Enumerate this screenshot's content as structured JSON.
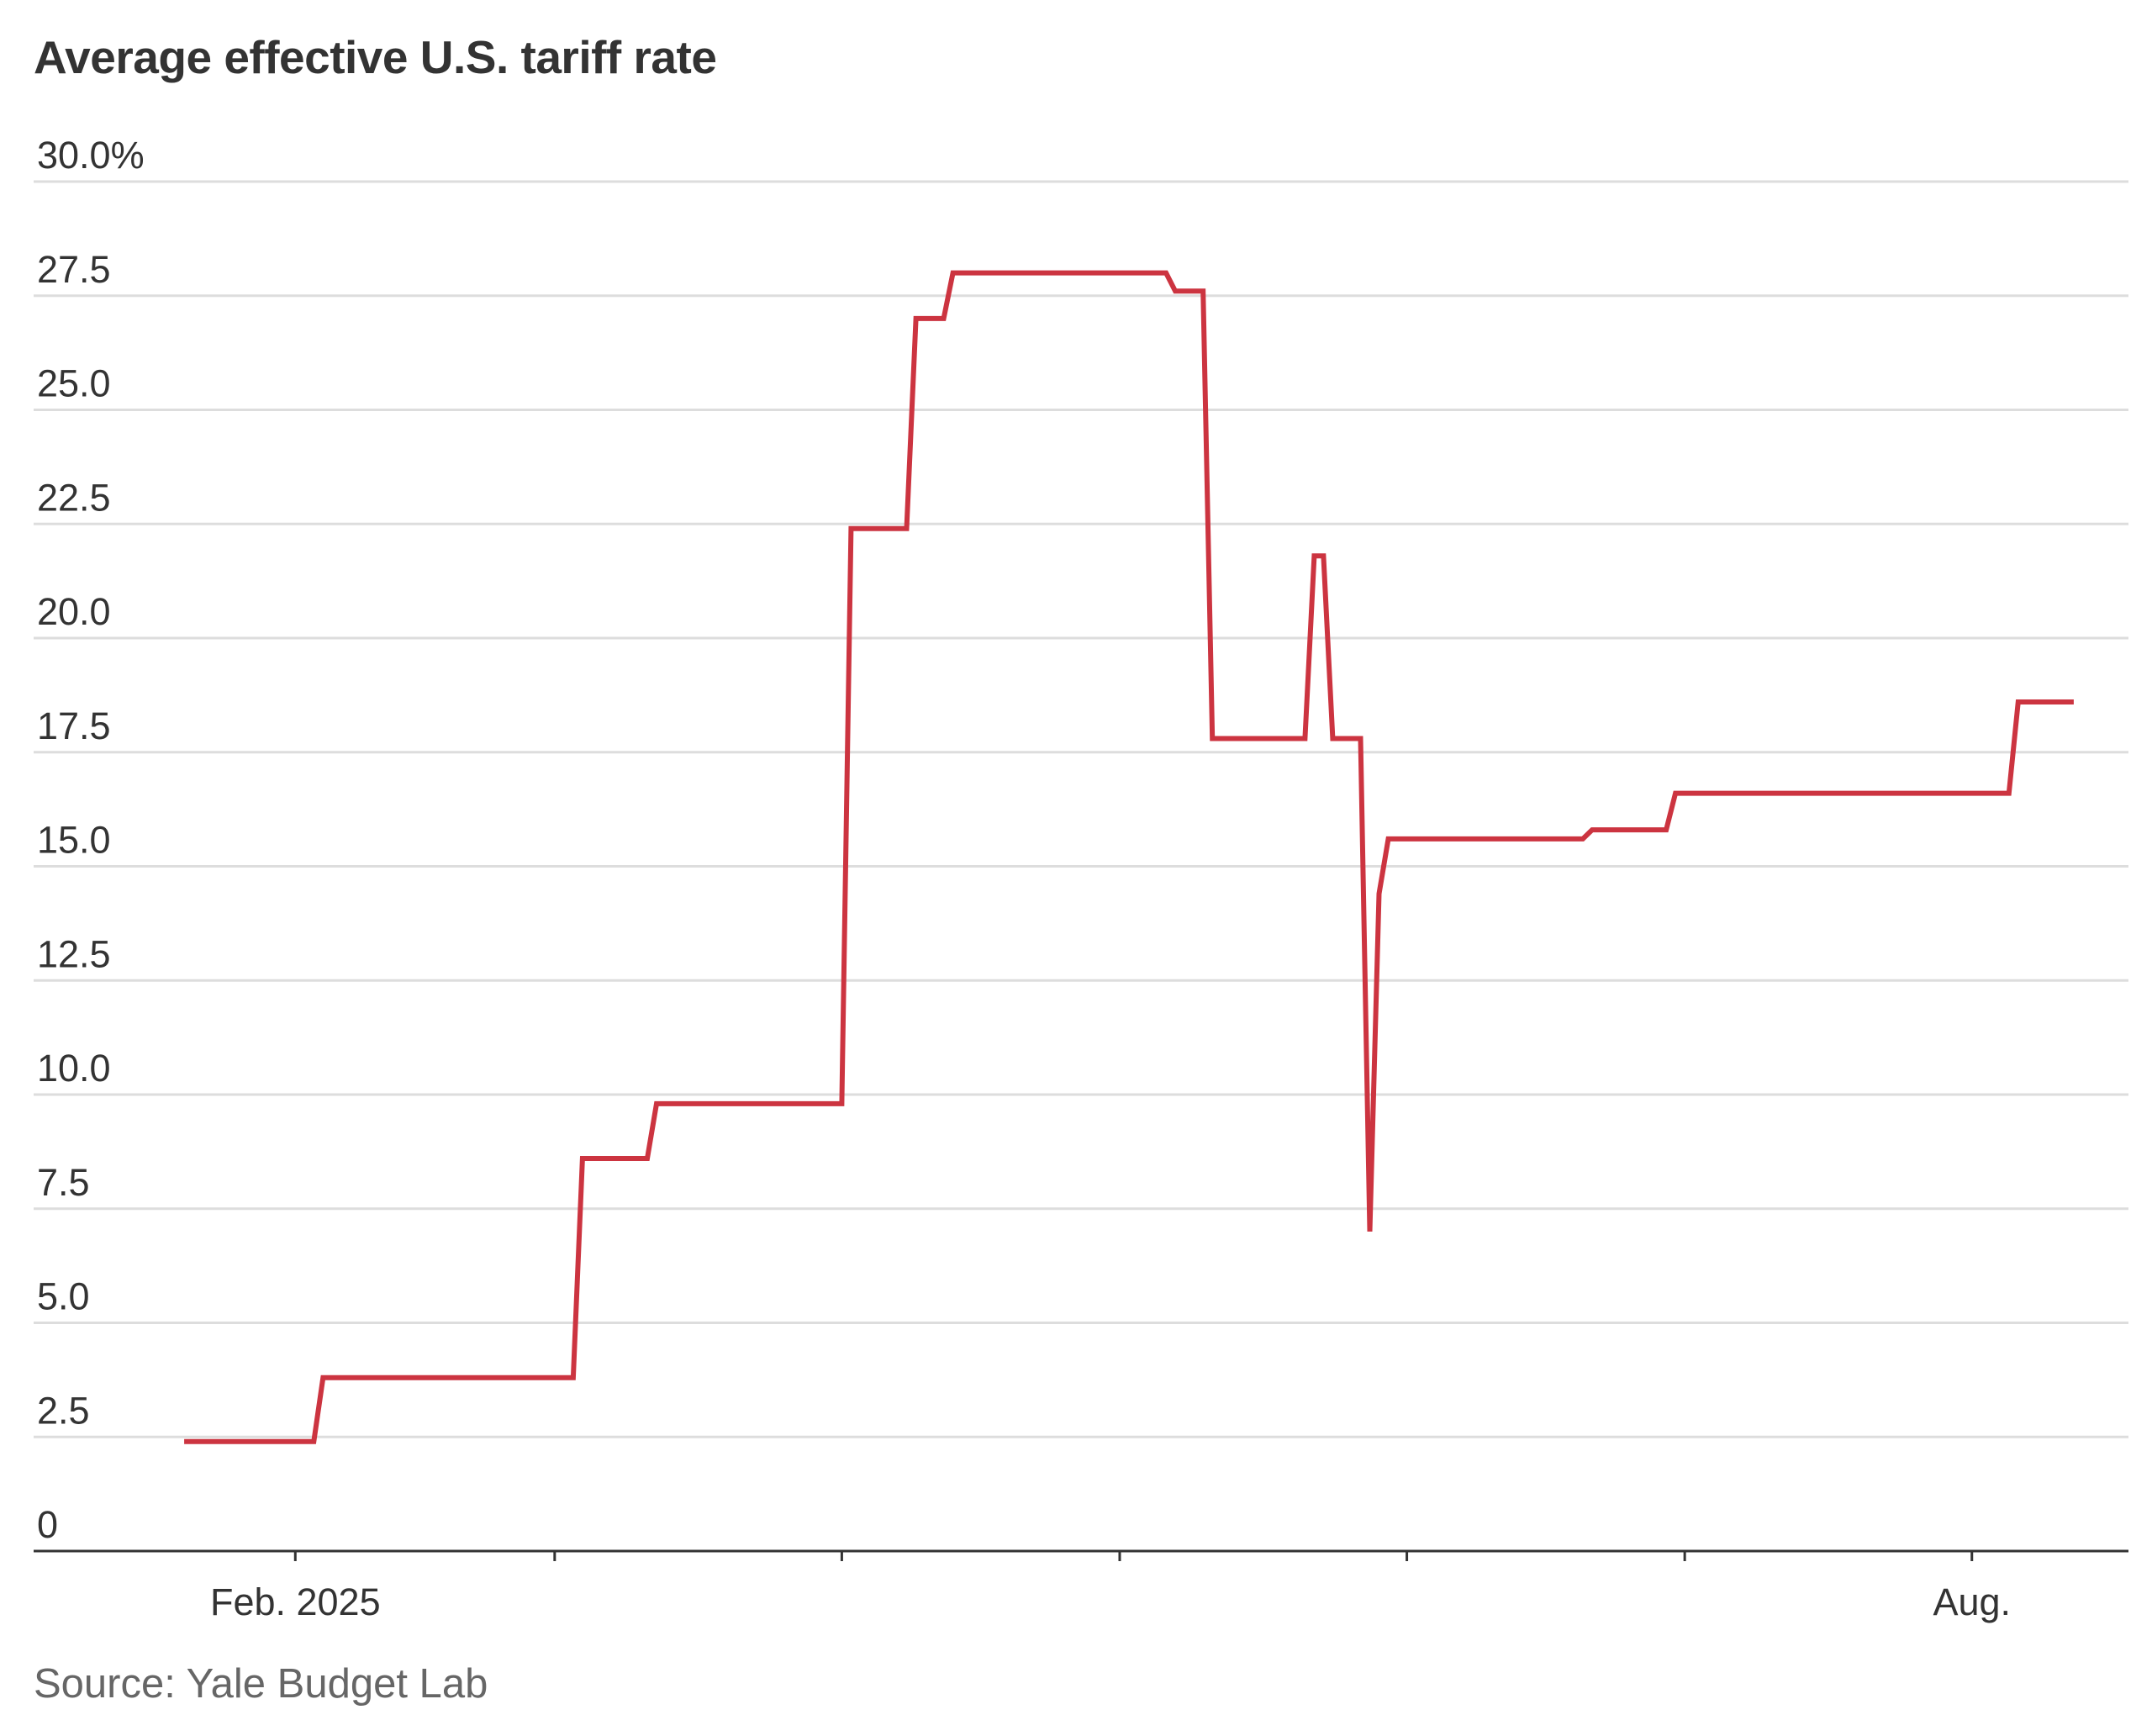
{
  "chart_data": {
    "type": "line",
    "title": "Average effective U.S. tariff rate",
    "source": "Source: Yale Budget Lab",
    "xlabel": "",
    "ylabel": "",
    "ylim": [
      0,
      30
    ],
    "grid": true,
    "y_ticks": [
      {
        "value": 0,
        "label": "0"
      },
      {
        "value": 2.5,
        "label": "2.5"
      },
      {
        "value": 5,
        "label": "5.0"
      },
      {
        "value": 7.5,
        "label": "7.5"
      },
      {
        "value": 10,
        "label": "10.0"
      },
      {
        "value": 12.5,
        "label": "12.5"
      },
      {
        "value": 15,
        "label": "15.0"
      },
      {
        "value": 17.5,
        "label": "17.5"
      },
      {
        "value": 20,
        "label": "20.0"
      },
      {
        "value": 22.5,
        "label": "22.5"
      },
      {
        "value": 25,
        "label": "25.0"
      },
      {
        "value": 27.5,
        "label": "27.5"
      },
      {
        "value": 30,
        "label": "30.0%"
      }
    ],
    "x_range": [
      "2025-01-17",
      "2025-08-15"
    ],
    "x_ticks": [
      {
        "date": "2025-02-01",
        "label": "Feb. 2025"
      },
      {
        "date": "2025-03-01",
        "label": ""
      },
      {
        "date": "2025-04-01",
        "label": ""
      },
      {
        "date": "2025-05-01",
        "label": ""
      },
      {
        "date": "2025-06-01",
        "label": ""
      },
      {
        "date": "2025-07-01",
        "label": ""
      },
      {
        "date": "2025-08-01",
        "label": "Aug."
      }
    ],
    "series": [
      {
        "color": "#cc3440",
        "points": [
          {
            "x": "2025-01-20",
            "y": 2.4
          },
          {
            "x": "2025-02-03",
            "y": 2.4
          },
          {
            "x": "2025-02-04",
            "y": 3.8
          },
          {
            "x": "2025-03-03",
            "y": 3.8
          },
          {
            "x": "2025-03-04",
            "y": 8.6
          },
          {
            "x": "2025-03-11",
            "y": 8.6
          },
          {
            "x": "2025-03-12",
            "y": 9.8
          },
          {
            "x": "2025-04-01",
            "y": 9.8
          },
          {
            "x": "2025-04-02",
            "y": 22.4
          },
          {
            "x": "2025-04-08",
            "y": 22.4
          },
          {
            "x": "2025-04-09",
            "y": 27
          },
          {
            "x": "2025-04-12",
            "y": 27
          },
          {
            "x": "2025-04-13",
            "y": 28
          },
          {
            "x": "2025-05-06",
            "y": 28
          },
          {
            "x": "2025-05-07",
            "y": 27.6
          },
          {
            "x": "2025-05-10",
            "y": 27.6
          },
          {
            "x": "2025-05-11",
            "y": 17.8
          },
          {
            "x": "2025-05-21",
            "y": 17.8
          },
          {
            "x": "2025-05-22",
            "y": 21.8
          },
          {
            "x": "2025-05-23",
            "y": 21.8
          },
          {
            "x": "2025-05-24",
            "y": 17.8
          },
          {
            "x": "2025-05-27",
            "y": 17.8
          },
          {
            "x": "2025-05-28",
            "y": 7
          },
          {
            "x": "2025-05-29",
            "y": 14.4
          },
          {
            "x": "2025-05-30",
            "y": 15.6
          },
          {
            "x": "2025-06-20",
            "y": 15.6
          },
          {
            "x": "2025-06-21",
            "y": 15.8
          },
          {
            "x": "2025-06-29",
            "y": 15.8
          },
          {
            "x": "2025-06-30",
            "y": 16.6
          },
          {
            "x": "2025-08-05",
            "y": 16.6
          },
          {
            "x": "2025-08-06",
            "y": 18.6
          },
          {
            "x": "2025-08-12",
            "y": 18.6
          }
        ]
      }
    ]
  }
}
